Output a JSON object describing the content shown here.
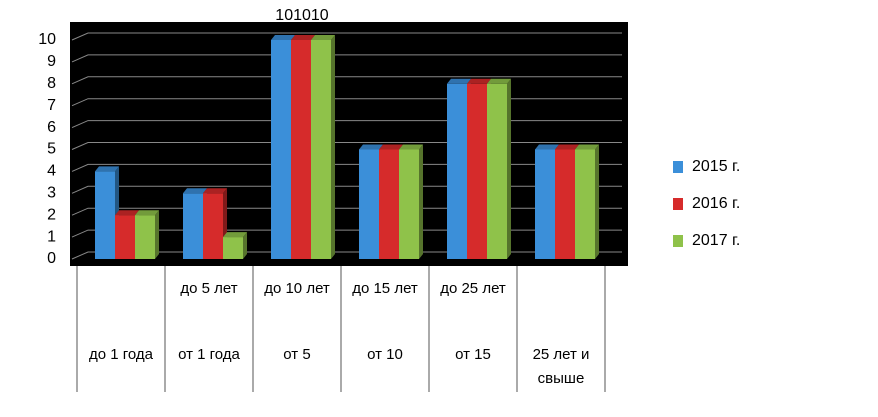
{
  "chart_data": {
    "type": "bar",
    "annotation": "101010",
    "categories": [
      "до 1 года",
      "от 1 года",
      "от 5",
      "от 10",
      "от 15",
      "25 лет и свыше"
    ],
    "category_top_labels": [
      null,
      "до 5 лет",
      "до 10 лет",
      "до 15 лет",
      "до 25 лет",
      null
    ],
    "series": [
      {
        "name": "2015 г.",
        "color": "#3b8fd9",
        "values": [
          4,
          3,
          10,
          5,
          8,
          5
        ]
      },
      {
        "name": "2016 г.",
        "color": "#d62b2b",
        "values": [
          2,
          3,
          10,
          5,
          8,
          5
        ]
      },
      {
        "name": "2017 г.",
        "color": "#8fc24a",
        "values": [
          2,
          1,
          10,
          5,
          8,
          5
        ]
      }
    ],
    "ylim": [
      0,
      10
    ],
    "yticks": [
      0,
      1,
      2,
      3,
      4,
      5,
      6,
      7,
      8,
      9,
      10
    ],
    "grid": true,
    "legend": "right"
  }
}
